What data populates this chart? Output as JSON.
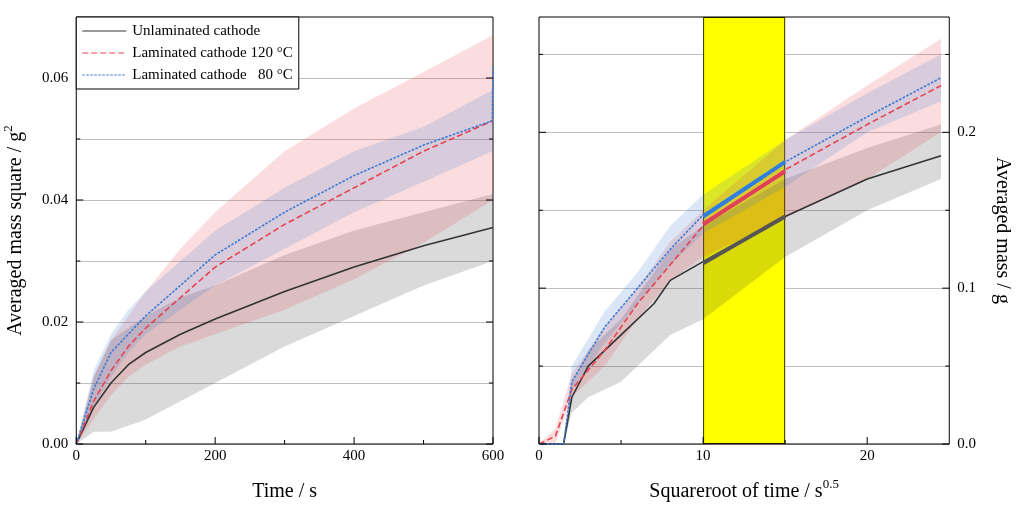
{
  "chart_data": [
    {
      "type": "line",
      "xlabel": "Time / s",
      "ylabel": "Averaged mass square / g$^{2}$",
      "xlim": [
        0,
        600
      ],
      "ylim": [
        0,
        0.07
      ],
      "xticks": [
        0,
        {
          "value": 100,
          "label": null
        },
        200,
        {
          "value": 300,
          "label": null
        },
        400,
        {
          "value": 500,
          "label": null
        },
        600
      ],
      "yticks": [
        {
          "value": 0,
          "label": "0.00"
        },
        {
          "value": 0.01,
          "label": null
        },
        {
          "value": 0.02,
          "label": "0.02"
        },
        {
          "value": 0.03,
          "label": null
        },
        {
          "value": 0.04,
          "label": "0.04"
        },
        {
          "value": 0.05,
          "label": null
        },
        {
          "value": 0.06,
          "label": "0.06"
        }
      ],
      "grid": "y",
      "legend": "top left",
      "marker": "none",
      "series": [
        {
          "name": "Unlaminated cathode",
          "color": "#333333",
          "line_style": "solid",
          "x": [
            0,
            25,
            50,
            75,
            100,
            150,
            200,
            300,
            400,
            500,
            600
          ],
          "values": [
            0,
            0.006,
            0.01,
            0.013,
            0.015,
            0.018,
            0.0205,
            0.025,
            0.029,
            0.0325,
            0.0355
          ],
          "lower": [
            0,
            0.002,
            0.002,
            0.003,
            0.004,
            0.007,
            0.01,
            0.016,
            0.021,
            0.026,
            0.03
          ],
          "upper": [
            0,
            0.011,
            0.017,
            0.019,
            0.021,
            0.024,
            0.026,
            0.031,
            0.035,
            0.038,
            0.041
          ]
        },
        {
          "name": "Laminated cathode 120 °C",
          "color": "#e8434f",
          "line_style": "dashed",
          "x": [
            0,
            25,
            50,
            75,
            100,
            150,
            200,
            300,
            400,
            500,
            600
          ],
          "values": [
            0,
            0.007,
            0.012,
            0.016,
            0.019,
            0.024,
            0.029,
            0.036,
            0.042,
            0.048,
            0.053
          ],
          "lower": [
            0,
            0.004,
            0.008,
            0.011,
            0.013,
            0.016,
            0.018,
            0.022,
            0.027,
            0.033,
            0.04
          ],
          "upper": [
            0,
            0.011,
            0.017,
            0.021,
            0.025,
            0.032,
            0.038,
            0.048,
            0.055,
            0.061,
            0.067
          ]
        },
        {
          "name": "Laminated cathode   80 °C",
          "color": "#3a7bd5",
          "line_style": "dotted",
          "x": [
            0,
            25,
            50,
            75,
            100,
            150,
            200,
            300,
            400,
            500,
            599,
            600
          ],
          "values": [
            0,
            0.009,
            0.015,
            0.018,
            0.021,
            0.026,
            0.031,
            0.038,
            0.044,
            0.049,
            0.053,
            0.062
          ],
          "lower": [
            0,
            0.006,
            0.011,
            0.015,
            0.018,
            0.022,
            0.026,
            0.032,
            0.038,
            0.043,
            0.048,
            0.048
          ],
          "upper": [
            0,
            0.012,
            0.018,
            0.022,
            0.025,
            0.03,
            0.035,
            0.042,
            0.048,
            0.052,
            0.058,
            0.058
          ]
        }
      ]
    },
    {
      "type": "line",
      "xlabel": "Squareroot of time / s$^{0.5}$",
      "y2label": "Averaged mass / g",
      "xlim": [
        0,
        25
      ],
      "y2lim": [
        0,
        0.274
      ],
      "xticks": [
        0,
        {
          "value": 5,
          "label": null
        },
        10,
        {
          "value": 15,
          "label": null
        },
        20
      ],
      "y2ticks": [
        {
          "value": 0,
          "label": "0.0"
        },
        {
          "value": 0.05,
          "label": null
        },
        {
          "value": 0.1,
          "label": "0.1"
        },
        {
          "value": 0.15,
          "label": null
        },
        {
          "value": 0.2,
          "label": "0.2"
        },
        {
          "value": 0.25,
          "label": null
        }
      ],
      "grid": "y",
      "marker": "none",
      "bands": [
        {
          "axis": "x",
          "from": 10,
          "to": 15,
          "color": "#ffff00"
        }
      ],
      "series": [
        {
          "color": "#333333",
          "axis": "y2",
          "line_style": "solid",
          "x": [
            0,
            1.5,
            2,
            3,
            5,
            7,
            8,
            10,
            15,
            20,
            24.5
          ],
          "values": [
            0,
            0,
            0.03,
            0.05,
            0.07,
            0.09,
            0.105,
            0.117,
            0.146,
            0.17,
            0.185
          ],
          "lower": [
            0,
            0,
            0.02,
            0.03,
            0.04,
            0.06,
            0.07,
            0.08,
            0.12,
            0.15,
            0.17
          ],
          "upper": [
            0,
            0,
            0.04,
            0.06,
            0.08,
            0.11,
            0.125,
            0.14,
            0.17,
            0.19,
            0.205
          ]
        },
        {
          "color": "#e8434f",
          "axis": "y2",
          "line_style": "dashed",
          "x": [
            0,
            1,
            2,
            4,
            6,
            8,
            10,
            15,
            20,
            24.5
          ],
          "values": [
            0,
            0.005,
            0.035,
            0.06,
            0.09,
            0.115,
            0.14,
            0.176,
            0.205,
            0.23
          ],
          "lower": [
            0,
            0,
            0.03,
            0.05,
            0.08,
            0.105,
            0.12,
            0.145,
            0.17,
            0.2
          ],
          "upper": [
            0,
            0.01,
            0.045,
            0.075,
            0.1,
            0.13,
            0.15,
            0.195,
            0.23,
            0.26
          ]
        },
        {
          "color": "#3a7bd5",
          "axis": "y2",
          "line_style": "dotted",
          "x": [
            0,
            1.5,
            2,
            4,
            6,
            8,
            10,
            15,
            20,
            24.5
          ],
          "values": [
            0,
            0,
            0.04,
            0.075,
            0.1,
            0.125,
            0.147,
            0.181,
            0.21,
            0.235
          ],
          "lower": [
            0,
            0,
            0.035,
            0.065,
            0.09,
            0.115,
            0.135,
            0.165,
            0.2,
            0.22
          ],
          "upper": [
            0,
            0,
            0.05,
            0.085,
            0.11,
            0.14,
            0.16,
            0.195,
            0.225,
            0.25
          ]
        },
        {
          "color": "#555555",
          "axis": "y2",
          "line_style": "solid",
          "x": [
            10,
            15
          ],
          "values": [
            0.116,
            0.146
          ]
        },
        {
          "color": "#e0405a",
          "axis": "y2",
          "line_style": "solid",
          "x": [
            10,
            15
          ],
          "values": [
            0.141,
            0.175
          ]
        },
        {
          "color": "#2f7fe0",
          "axis": "y2",
          "line_style": "solid",
          "x": [
            10,
            15
          ],
          "values": [
            0.146,
            0.181
          ]
        }
      ]
    }
  ]
}
